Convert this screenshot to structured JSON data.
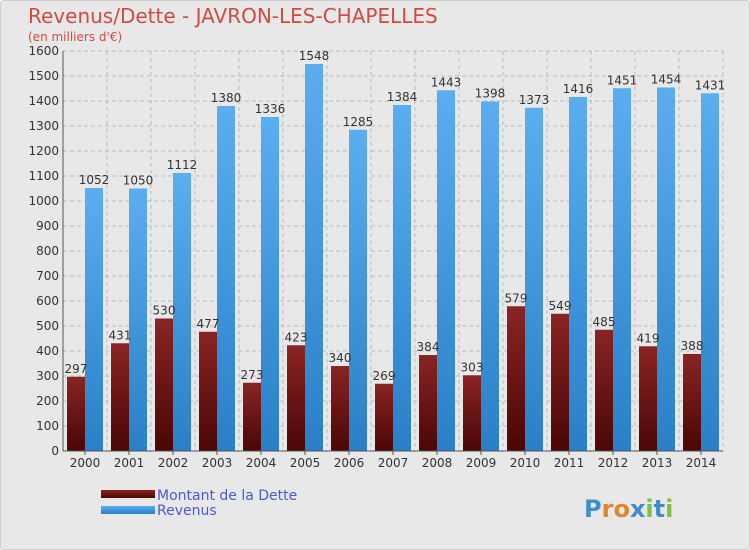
{
  "title": "Revenus/Dette - JAVRON-LES-CHAPELLES",
  "subtitle": "(en milliers d'€)",
  "chart_data": {
    "type": "bar",
    "categories": [
      "2000",
      "2001",
      "2002",
      "2003",
      "2004",
      "2005",
      "2006",
      "2007",
      "2008",
      "2009",
      "2010",
      "2011",
      "2012",
      "2013",
      "2014"
    ],
    "series": [
      {
        "name": "Montant de la Dette",
        "values": [
          297,
          431,
          530,
          477,
          273,
          423,
          340,
          269,
          384,
          303,
          579,
          549,
          485,
          419,
          388
        ],
        "color": "#7a1818"
      },
      {
        "name": "Revenus",
        "values": [
          1052,
          1050,
          1112,
          1380,
          1336,
          1548,
          1285,
          1384,
          1443,
          1398,
          1373,
          1416,
          1451,
          1454,
          1431
        ],
        "color": "#3d9ae2"
      }
    ],
    "ylim": [
      0,
      1600
    ],
    "yticks": [
      0,
      100,
      200,
      300,
      400,
      500,
      600,
      700,
      800,
      900,
      1000,
      1100,
      1200,
      1300,
      1400,
      1500,
      1600
    ],
    "grid": true,
    "legend": "bottom-left"
  },
  "logo": {
    "letters": [
      "P",
      "r",
      "o",
      "x",
      "i",
      "t",
      "i"
    ],
    "colors": [
      "#3f8ec9",
      "#e0862a",
      "#e0862a",
      "#3f8ec9",
      "#7cc142",
      "#3f8ec9",
      "#7cc142"
    ]
  }
}
